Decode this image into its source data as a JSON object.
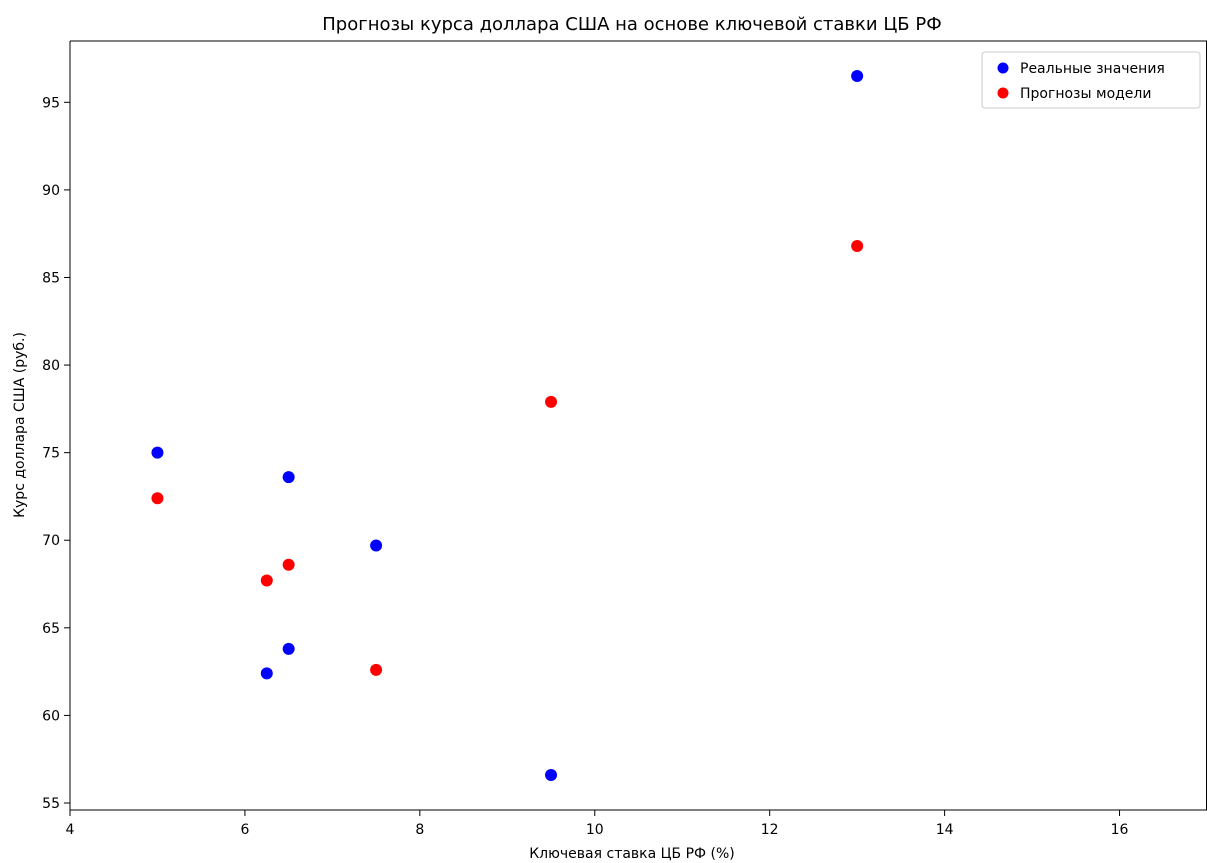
{
  "chart_data": {
    "type": "scatter",
    "title": "Прогнозы курса доллара США на основе ключевой ставки ЦБ РФ",
    "xlabel": "Ключевая ставка ЦБ РФ (%)",
    "ylabel": "Курс доллара США (руб.)",
    "xlim": [
      4,
      17
    ],
    "ylim": [
      54.6,
      98.5
    ],
    "xticks": [
      4,
      6,
      8,
      10,
      12,
      14,
      16
    ],
    "yticks": [
      55,
      60,
      65,
      70,
      75,
      80,
      85,
      90,
      95
    ],
    "grid": false,
    "legend_position": "top-right",
    "series": [
      {
        "name": "Реальные значения",
        "color": "#0000ff",
        "points": [
          {
            "x": 5.0,
            "y": 75.0
          },
          {
            "x": 6.25,
            "y": 62.4
          },
          {
            "x": 6.5,
            "y": 73.6
          },
          {
            "x": 6.5,
            "y": 63.8
          },
          {
            "x": 7.5,
            "y": 69.7
          },
          {
            "x": 9.5,
            "y": 56.6
          },
          {
            "x": 13.0,
            "y": 96.5
          }
        ]
      },
      {
        "name": "Прогнозы модели",
        "color": "#ff0000",
        "points": [
          {
            "x": 5.0,
            "y": 72.4
          },
          {
            "x": 6.25,
            "y": 67.7
          },
          {
            "x": 6.5,
            "y": 68.6
          },
          {
            "x": 7.5,
            "y": 62.6
          },
          {
            "x": 9.5,
            "y": 77.9
          },
          {
            "x": 13.0,
            "y": 86.8
          }
        ]
      }
    ]
  }
}
